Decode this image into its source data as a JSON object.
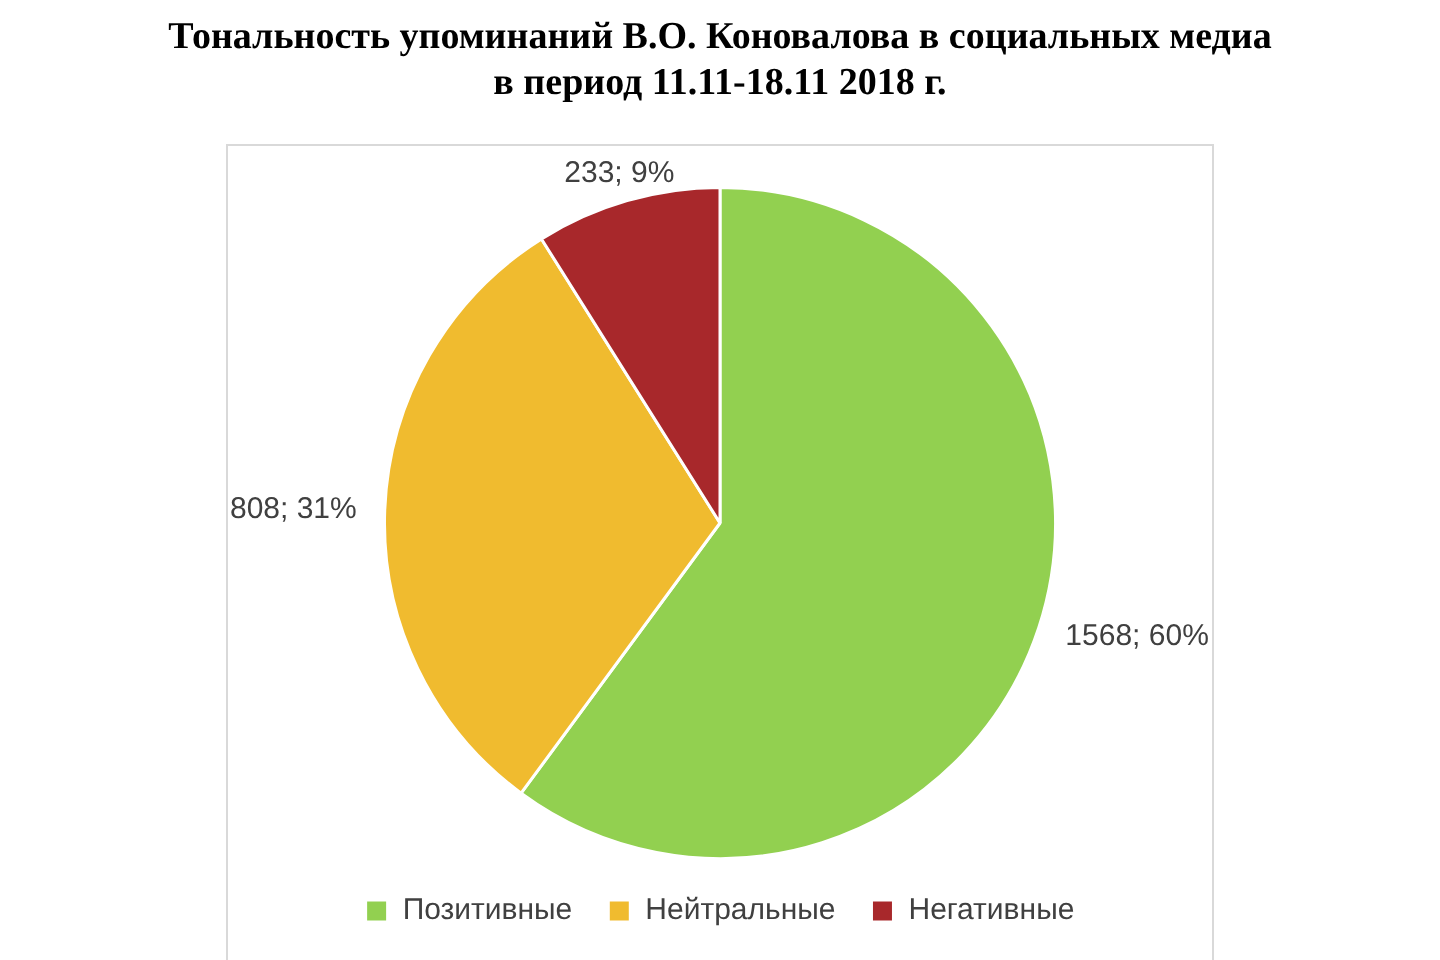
{
  "chart_data": {
    "type": "pie",
    "title": "Тональность упоминаний В.О. Коновалова в социальных медиа\nв период 11.11-18.11 2018 г.",
    "categories": [
      "Позитивные",
      "Нейтральные",
      "Негативные"
    ],
    "values": [
      1568,
      808,
      233
    ],
    "colors": [
      "#92d050",
      "#f0bb2f",
      "#a8282b"
    ],
    "value_labels": [
      "1568; 60%",
      "808; 31%",
      "233; 9%"
    ],
    "legend": "bottom"
  }
}
